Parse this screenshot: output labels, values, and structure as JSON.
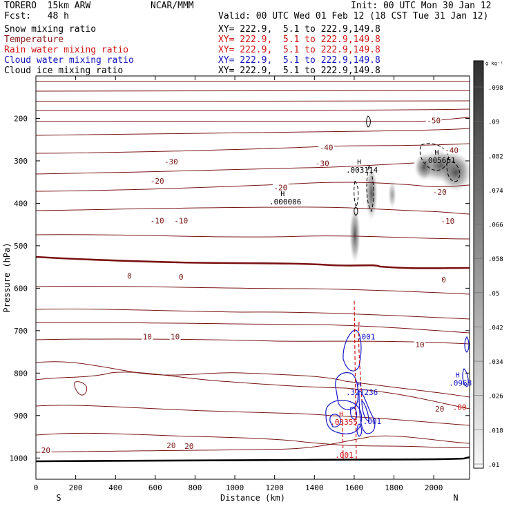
{
  "header": {
    "model": "TORERO  15km ARW",
    "org": "NCAR/MMM",
    "init": "Init: 00 UTC Mon 30 Jan 12",
    "fcst": "Fcst:   48 h",
    "valid": "Valid: 00 UTC Wed 01 Feb 12 (18 CST Tue 31 Jan 12)"
  },
  "fields": [
    {
      "label": "Snow mixing ratio",
      "xy": "XY= 222.9,  5.1 to 222.9,149.8",
      "color": "#000000"
    },
    {
      "label": "Temperature",
      "xy": "XY= 222.9,  5.1 to 222.9,149.8",
      "color": "#8b1a1a"
    },
    {
      "label": "Rain water mixing ratio",
      "xy": "XY= 222.9,  5.1 to 222.9,149.8",
      "color": "#d01010"
    },
    {
      "label": "Cloud water mixing ratio",
      "xy": "XY= 222.9,  5.1 to 222.9,149.8",
      "color": "#1010c0"
    },
    {
      "label": "Cloud ice mixing ratio",
      "xy": "XY= 222.9,  5.1 to 222.9,149.8",
      "color": "#000000"
    }
  ],
  "chart_data": {
    "type": "cross-section",
    "xlabel": "Distance (km)",
    "ylabel": "Pressure (hPa)",
    "x_ticks": [
      0,
      200,
      400,
      600,
      800,
      1000,
      1200,
      1400,
      1600,
      1800,
      2000
    ],
    "y_ticks": [
      200,
      300,
      400,
      500,
      600,
      700,
      800,
      900,
      1000
    ],
    "xlim": [
      0,
      2180
    ],
    "ylim": [
      100,
      1050
    ],
    "end_labels": {
      "left": "S",
      "right": "N"
    },
    "colorbar": {
      "unit": "g kg⁻¹",
      "ticks": [
        ".01",
        ".018",
        ".026",
        ".034",
        ".042",
        ".05",
        ".058",
        ".066",
        ".074",
        ".082",
        ".09",
        ".098"
      ]
    },
    "temperature_labels": [
      {
        "x": 2000,
        "p": 205,
        "text": "-50"
      },
      {
        "x": 1460,
        "p": 268,
        "text": "-40"
      },
      {
        "x": 2090,
        "p": 275,
        "text": "-40"
      },
      {
        "x": 680,
        "p": 302,
        "text": "-30"
      },
      {
        "x": 1440,
        "p": 306,
        "text": "-30"
      },
      {
        "x": 610,
        "p": 347,
        "text": "-20"
      },
      {
        "x": 1230,
        "p": 363,
        "text": "-20"
      },
      {
        "x": 2030,
        "p": 373,
        "text": "-20"
      },
      {
        "x": 610,
        "p": 441,
        "text": "-10"
      },
      {
        "x": 730,
        "p": 441,
        "text": "-10"
      },
      {
        "x": 2070,
        "p": 442,
        "text": "-10"
      },
      {
        "x": 470,
        "p": 571,
        "text": "0"
      },
      {
        "x": 730,
        "p": 573,
        "text": "0"
      },
      {
        "x": 2050,
        "p": 580,
        "text": "0"
      },
      {
        "x": 560,
        "p": 714,
        "text": "10"
      },
      {
        "x": 700,
        "p": 714,
        "text": "10"
      },
      {
        "x": 1930,
        "p": 733,
        "text": "10"
      },
      {
        "x": 2030,
        "p": 884,
        "text": "20"
      },
      {
        "x": 680,
        "p": 970,
        "text": "20"
      },
      {
        "x": 770,
        "p": 972,
        "text": "20"
      },
      {
        "x": 50,
        "p": 982,
        "text": "20"
      }
    ],
    "extrema": [
      {
        "x": 1240,
        "p": 393,
        "type": "H",
        "value": ".000006",
        "color": "#000000"
      },
      {
        "x": 1625,
        "p": 318,
        "type": "H",
        "value": ".003114",
        "color": "#000000"
      },
      {
        "x": 2015,
        "p": 295,
        "type": "H",
        "value": ".005661",
        "color": "#000000"
      },
      {
        "x": 1625,
        "p": 842,
        "type": "H",
        "value": ".327236",
        "color": "#1010c0"
      },
      {
        "x": 1535,
        "p": 912,
        "type": "H",
        "value": ".03355",
        "color": "#d01010"
      },
      {
        "x": 2120,
        "p": 820,
        "type": "H",
        "value": ".0968",
        "color": "#1010c0"
      }
    ],
    "contour_labels": [
      {
        "x": 1660,
        "p": 714,
        "text": ".001",
        "color": "#1010c0"
      },
      {
        "x": 1690,
        "p": 913,
        "text": ".001",
        "color": "#1010c0"
      },
      {
        "x": 1550,
        "p": 993,
        "text": ".001",
        "color": "#d01010"
      },
      {
        "x": 2130,
        "p": 880,
        "text": ".00",
        "color": "#d01010"
      }
    ]
  }
}
